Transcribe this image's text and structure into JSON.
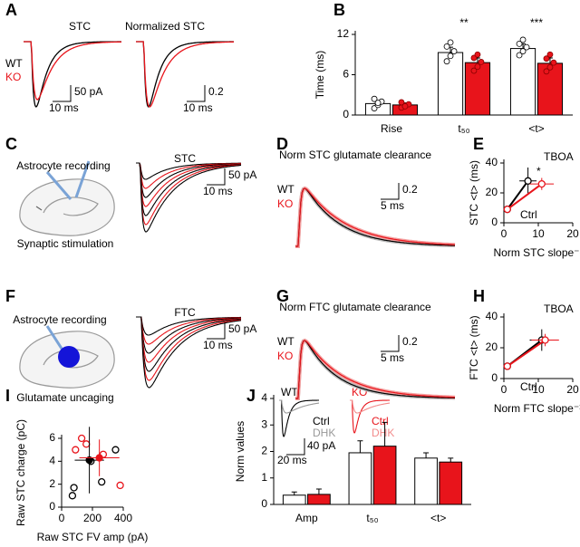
{
  "panel_labels": [
    "A",
    "B",
    "C",
    "D",
    "E",
    "F",
    "G",
    "H",
    "I",
    "J"
  ],
  "a": {
    "titles": [
      "STC",
      "Normalized STC"
    ],
    "legend": [
      "WT",
      "KO"
    ],
    "scale_bars": [
      "50 pA",
      "10 ms",
      "0.2"
    ]
  },
  "c": {
    "labels": [
      "Astrocyte recording",
      "Synaptic stimulation"
    ],
    "trace_title": "STC",
    "scale_bars": [
      "50 pA",
      "10 ms"
    ]
  },
  "d": {
    "title": "Norm STC glutamate clearance",
    "legend": [
      "WT",
      "KO"
    ],
    "scale_bars": [
      "0.2",
      "5 ms"
    ]
  },
  "f": {
    "labels": [
      "Astrocyte recording",
      "Glutamate uncaging"
    ],
    "trace_title": "FTC",
    "scale_bars": [
      "50 pA",
      "10 ms"
    ]
  },
  "g": {
    "title": "Norm FTC glutamate clearance",
    "legend": [
      "WT",
      "KO"
    ],
    "scale_bars": [
      "0.2",
      "5 ms"
    ]
  },
  "j_insets": {
    "wt": {
      "title": "WT",
      "legend": [
        "Ctrl",
        "DHK"
      ]
    },
    "ko": {
      "title": "KO",
      "legend": [
        "Ctrl",
        "DHK"
      ]
    },
    "scale_bars": [
      "40 pA",
      "20 ms"
    ]
  },
  "chart_data": [
    {
      "type": "bar",
      "y_label": "Time (ms)",
      "categories": [
        "Rise",
        "t₅₀",
        "<t>"
      ],
      "significance": [
        null,
        "**",
        "***"
      ],
      "series": [
        {
          "color": "#ffffff",
          "values": [
            1.7,
            9.3,
            9.9
          ],
          "errors": [
            0.4,
            0.8,
            0.7
          ],
          "points": [
            [
              1.0,
              1.5,
              2.0,
              2.4,
              1.8
            ],
            [
              8.0,
              8.8,
              9.5,
              10.2,
              10.8
            ],
            [
              8.9,
              9.5,
              10.1,
              10.6,
              11.2
            ]
          ]
        },
        {
          "color": "#e8141b",
          "values": [
            1.5,
            7.8,
            7.7
          ],
          "errors": [
            0.3,
            0.7,
            0.8
          ],
          "points": [
            [
              1.1,
              1.4,
              1.6,
              1.9,
              1.3
            ],
            [
              6.6,
              7.2,
              7.9,
              8.5,
              9.0
            ],
            [
              6.5,
              7.1,
              7.8,
              8.4,
              9.0
            ]
          ]
        }
      ],
      "ylim": [
        0,
        12
      ],
      "yticks": [
        0,
        6,
        12
      ]
    },
    {
      "type": "scatter",
      "y_label": "STC <t> (ms)",
      "x_label": "Norm STC slope⁻¹",
      "annotations": [
        "TBOA",
        "*",
        "Ctrl"
      ],
      "lines": true,
      "series": [
        {
          "color": "#000000",
          "marker": "open",
          "x": [
            1,
            7
          ],
          "values": [
            9,
            28
          ],
          "x_errors": [
            0.3,
            2.5
          ],
          "errors": [
            0.6,
            9
          ]
        },
        {
          "color": "#e8141b",
          "marker": "open",
          "x": [
            1,
            11
          ],
          "values": [
            9,
            26
          ],
          "x_errors": [
            0.3,
            3.5
          ],
          "errors": [
            0.6,
            4
          ]
        }
      ],
      "xlim": [
        0,
        20
      ],
      "xticks": [
        0,
        10,
        20
      ],
      "ylim": [
        0,
        40
      ],
      "yticks": [
        0,
        20,
        40
      ]
    },
    {
      "type": "scatter",
      "y_label": "FTC <t> (ms)",
      "x_label": "Norm FTC slope⁻¹",
      "annotations": [
        "TBOA",
        "Ctrl"
      ],
      "lines": true,
      "series": [
        {
          "color": "#000000",
          "marker": "open",
          "x": [
            1,
            11
          ],
          "values": [
            8,
            25
          ],
          "x_errors": [
            0.3,
            3.5
          ],
          "errors": [
            0.6,
            7
          ]
        },
        {
          "color": "#e8141b",
          "marker": "open",
          "x": [
            1,
            12
          ],
          "values": [
            8,
            25
          ],
          "x_errors": [
            0.3,
            4
          ],
          "errors": [
            0.6,
            4
          ]
        }
      ],
      "xlim": [
        0,
        20
      ],
      "xticks": [
        0,
        10,
        20
      ],
      "ylim": [
        0,
        40
      ],
      "yticks": [
        0,
        20,
        40
      ]
    },
    {
      "type": "scatter",
      "y_label": "Raw STC charge (pC)",
      "x_label": "Raw STC FV amp (pA)",
      "lines": false,
      "series": [
        {
          "color": "#000000",
          "marker": "open",
          "x": [
            70,
            80,
            260,
            350,
            190
          ],
          "values": [
            1.0,
            1.7,
            2.2,
            5.0,
            4.0
          ]
        },
        {
          "color": "#e8141b",
          "marker": "open",
          "x": [
            90,
            130,
            160,
            270,
            380
          ],
          "values": [
            5.0,
            6.0,
            5.5,
            4.6,
            1.9
          ]
        },
        {
          "color": "#000000",
          "marker": "filled",
          "x": [
            180
          ],
          "values": [
            4.1
          ],
          "x_errors": [
            95
          ],
          "errors": [
            2.9
          ]
        },
        {
          "color": "#e8141b",
          "marker": "filled",
          "x": [
            245
          ],
          "values": [
            4.3
          ],
          "x_errors": [
            130
          ],
          "errors": [
            1.6
          ]
        }
      ],
      "xlim": [
        0,
        400
      ],
      "xticks": [
        0,
        200,
        400
      ],
      "ylim": [
        0,
        6
      ],
      "yticks": [
        0,
        2,
        4,
        6
      ]
    },
    {
      "type": "bar",
      "y_label": "Norm values",
      "categories": [
        "Amp",
        "t₅₀",
        "<t>"
      ],
      "series": [
        {
          "color": "#ffffff",
          "values": [
            0.35,
            1.95,
            1.75
          ],
          "errors": [
            0.12,
            0.45,
            0.2
          ]
        },
        {
          "color": "#e8141b",
          "values": [
            0.38,
            2.2,
            1.6
          ],
          "errors": [
            0.2,
            0.9,
            0.15
          ]
        }
      ],
      "ylim": [
        0,
        4
      ],
      "yticks": [
        0,
        1,
        2,
        3,
        4
      ]
    }
  ]
}
